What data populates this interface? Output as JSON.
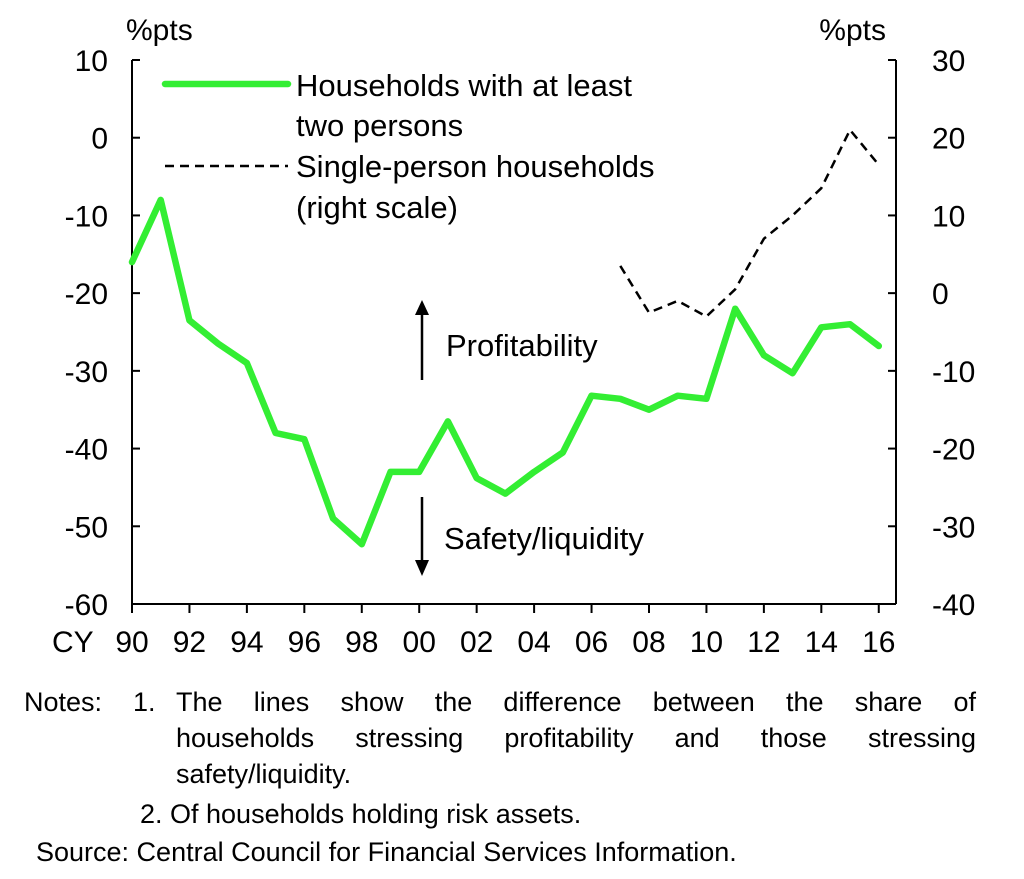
{
  "chart_data": {
    "type": "line",
    "x_prefix": "CY",
    "x_tick_labels": [
      "90",
      "92",
      "94",
      "96",
      "98",
      "00",
      "02",
      "04",
      "06",
      "08",
      "10",
      "12",
      "14",
      "16"
    ],
    "y_left": {
      "unit_label": "%pts",
      "range": [
        -60,
        10
      ],
      "ticks": [
        10,
        0,
        -10,
        -20,
        -30,
        -40,
        -50,
        -60
      ]
    },
    "y_right": {
      "unit_label": "%pts",
      "range": [
        -40,
        30
      ],
      "ticks": [
        30,
        20,
        10,
        0,
        -10,
        -20,
        -30,
        -40
      ]
    },
    "series": [
      {
        "name": "Households with at least two persons",
        "axis": "left",
        "color": "#33ee33",
        "x": [
          1990,
          1991,
          1992,
          1993,
          1994,
          1995,
          1996,
          1997,
          1998,
          1999,
          2000,
          2001,
          2002,
          2003,
          2004,
          2005,
          2006,
          2007,
          2008,
          2009,
          2010,
          2011,
          2012,
          2013,
          2014,
          2015,
          2016
        ],
        "y": [
          -16,
          -8,
          -23.5,
          -26.5,
          -29,
          -38,
          -38.8,
          -49,
          -52.3,
          -43,
          -43,
          -36.5,
          -43.8,
          -45.8,
          -43,
          -40.5,
          -33.2,
          -33.6,
          -35,
          -33.2,
          -33.6,
          -22,
          -28,
          -30.3,
          -24.4,
          -24,
          -26.8
        ]
      },
      {
        "name": "Single-person households",
        "legend_suffix": "(right scale)",
        "axis": "right",
        "color": "#000000",
        "dashed": true,
        "x": [
          2007,
          2008,
          2009,
          2010,
          2011,
          2012,
          2013,
          2014,
          2015,
          2016
        ],
        "y": [
          3.5,
          -2.5,
          -1,
          -3,
          0.5,
          7,
          10,
          13.5,
          21,
          16.5
        ]
      }
    ],
    "legend": {
      "line1": "Households with at least",
      "line2": "two persons",
      "line3": "Single-person households",
      "line4": "(right scale)"
    },
    "annotations": {
      "up": "Profitability",
      "down": "Safety/liquidity"
    }
  },
  "notes": {
    "label": "Notes:",
    "n1_num": "1.",
    "n1_line1": "The lines show the difference between the share of",
    "n1_line2": "households stressing profitability and those stressing",
    "n1_line3": "safety/liquidity.",
    "n2": "2. Of households holding risk assets.",
    "source": "Source: Central Council for Financial Services Information."
  }
}
